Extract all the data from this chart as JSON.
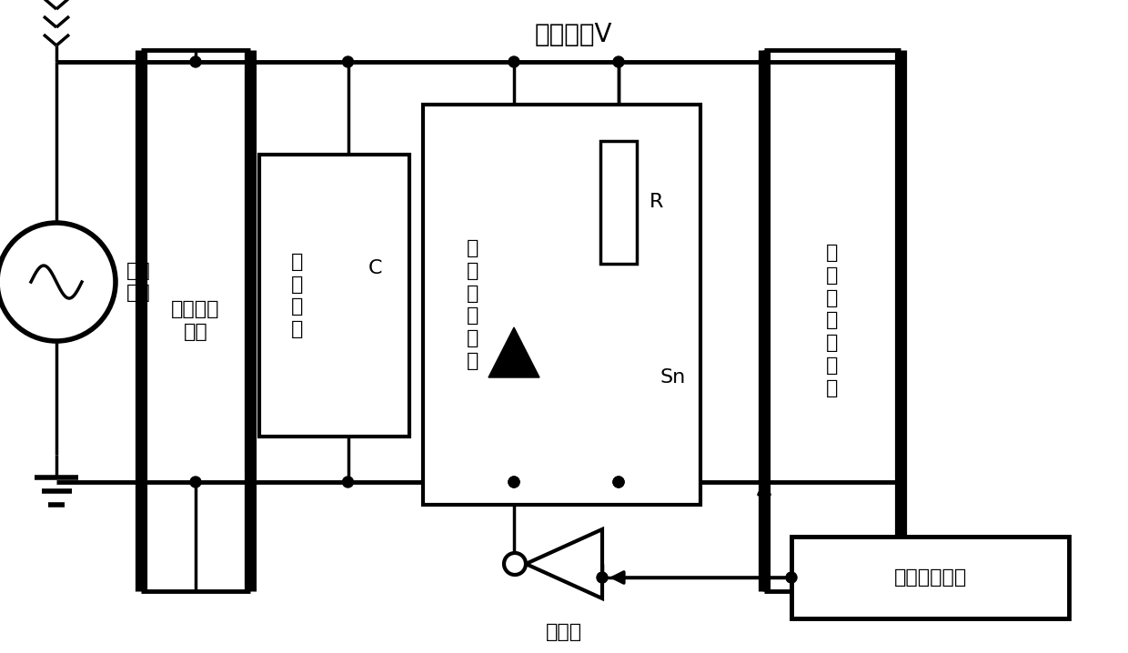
{
  "bg_color": "#ffffff",
  "lc": "#000000",
  "lw": 2.5,
  "figsize": [
    12.4,
    7.18
  ],
  "dpi": 100,
  "title": "母线电压V",
  "label_source": "供电\n电源",
  "label_pmn": "电源匹配\n网络",
  "label_cap": "储\n能\n电\n容",
  "label_C": "C",
  "label_pulse": "脉\n冲\n匹\n配\n网\n络",
  "label_R": "R",
  "label_Sn": "Sn",
  "label_load": "大\n功\n率\n脉\n冲\n负\n载",
  "label_inv": "反向器",
  "label_timing": "时序发生设备"
}
